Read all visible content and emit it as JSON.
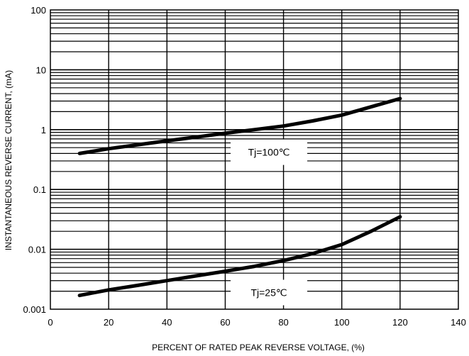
{
  "chart_data": {
    "type": "line",
    "title": "",
    "xlabel": "PERCENT OF RATED PEAK REVERSE VOLTAGE, (%)",
    "ylabel": "INSTANTANEOUS REVERSE CURRENT, (mA)",
    "xlim": [
      0,
      140
    ],
    "ylim": [
      0.001,
      100
    ],
    "y_scale": "log",
    "grid": true,
    "x_ticks": [
      "0",
      "20",
      "40",
      "60",
      "80",
      "100",
      "120",
      "140"
    ],
    "y_ticks": [
      "0.001",
      "0.01",
      "0.1",
      "1",
      "10",
      "100"
    ],
    "series": [
      {
        "name": "Tj=100℃",
        "x": [
          10,
          20,
          30,
          40,
          50,
          60,
          70,
          80,
          90,
          100,
          110,
          120
        ],
        "y": [
          0.4,
          0.48,
          0.56,
          0.65,
          0.75,
          0.87,
          1.0,
          1.15,
          1.4,
          1.75,
          2.4,
          3.3
        ]
      },
      {
        "name": "Tj=25℃",
        "x": [
          10,
          20,
          30,
          40,
          50,
          60,
          70,
          80,
          90,
          100,
          110,
          120
        ],
        "y": [
          0.0017,
          0.0021,
          0.0025,
          0.003,
          0.0036,
          0.0043,
          0.0052,
          0.0065,
          0.0085,
          0.012,
          0.02,
          0.035
        ]
      }
    ]
  }
}
